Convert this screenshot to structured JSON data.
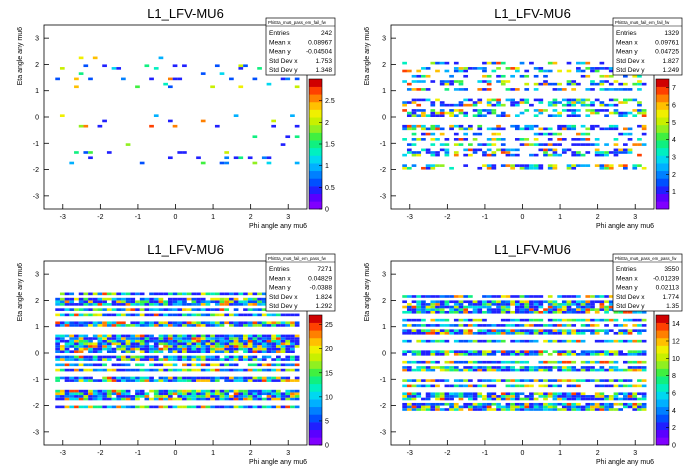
{
  "chart_data": [
    {
      "type": "heatmap",
      "title": "L1_LFV-MU6",
      "xlabel": "Phi angle any mu6",
      "ylabel": "Eta angle any mu6",
      "xlim": [
        -3.5,
        3.5
      ],
      "ylim": [
        -3.5,
        3.5
      ],
      "x_ticks": [
        "-3",
        "-2",
        "-1",
        "0",
        "1",
        "2",
        "3"
      ],
      "y_ticks": [
        "-3",
        "-2",
        "-1",
        "0",
        "1",
        "2",
        "3"
      ],
      "z_ticks": [
        "0",
        "0.5",
        "1",
        "1.5",
        "2",
        "2.5"
      ],
      "zmax": 3,
      "fill_fraction": 0.12,
      "stats": {
        "name": "PhiEta_mu6_pass_em_fail_fw",
        "rows": [
          {
            "label": "Entries",
            "value": "242"
          },
          {
            "label": "Mean x",
            "value": "0.08967"
          },
          {
            "label": "Mean y",
            "value": "-0.04504"
          },
          {
            "label": "Std Dev x",
            "value": "1.753"
          },
          {
            "label": "Std Dev y",
            "value": "1.348"
          }
        ]
      }
    },
    {
      "type": "heatmap",
      "title": "L1_LFV-MU6",
      "xlabel": "Phi angle any mu6",
      "ylabel": "Eta angle any mu6",
      "xlim": [
        -3.5,
        3.5
      ],
      "ylim": [
        -3.5,
        3.5
      ],
      "x_ticks": [
        "-3",
        "-2",
        "-1",
        "0",
        "1",
        "2",
        "3"
      ],
      "y_ticks": [
        "-3",
        "-2",
        "-1",
        "0",
        "1",
        "2",
        "3"
      ],
      "z_ticks": [
        "1",
        "2",
        "3",
        "4",
        "5",
        "6",
        "7"
      ],
      "zmax": 7.5,
      "fill_fraction": 0.55,
      "stats": {
        "name": "PhiEta_mu6_fail_em_fail_fw",
        "rows": [
          {
            "label": "Entries",
            "value": "1329"
          },
          {
            "label": "Mean x",
            "value": "0.09761"
          },
          {
            "label": "Mean y",
            "value": "0.04725"
          },
          {
            "label": "Std Dev x",
            "value": "1.827"
          },
          {
            "label": "Std Dev y",
            "value": "1.249"
          }
        ]
      }
    },
    {
      "type": "heatmap",
      "title": "L1_LFV-MU6",
      "xlabel": "Phi angle any mu6",
      "ylabel": "Eta angle any mu6",
      "xlim": [
        -3.5,
        3.5
      ],
      "ylim": [
        -3.5,
        3.5
      ],
      "x_ticks": [
        "-3",
        "-2",
        "-1",
        "0",
        "1",
        "2",
        "3"
      ],
      "y_ticks": [
        "-3",
        "-2",
        "-1",
        "0",
        "1",
        "2",
        "3"
      ],
      "z_ticks": [
        "0",
        "5",
        "10",
        "15",
        "20",
        "25"
      ],
      "zmax": 27,
      "fill_fraction": 0.95,
      "stats": {
        "name": "PhiEta_mu6_fail_em_pass_fw",
        "rows": [
          {
            "label": "Entries",
            "value": "7271"
          },
          {
            "label": "Mean x",
            "value": "0.04829"
          },
          {
            "label": "Mean y",
            "value": "-0.0388"
          },
          {
            "label": "Std Dev x",
            "value": "1.824"
          },
          {
            "label": "Std Dev y",
            "value": "1.292"
          }
        ]
      }
    },
    {
      "type": "heatmap",
      "title": "L1_LFV-MU6",
      "xlabel": "Phi angle any mu6",
      "ylabel": "Eta angle any mu6",
      "xlim": [
        -3.5,
        3.5
      ],
      "ylim": [
        -3.5,
        3.5
      ],
      "x_ticks": [
        "-3",
        "-2",
        "-1",
        "0",
        "1",
        "2",
        "3"
      ],
      "y_ticks": [
        "-3",
        "-2",
        "-1",
        "0",
        "1",
        "2",
        "3"
      ],
      "z_ticks": [
        "0",
        "2",
        "4",
        "6",
        "8",
        "10",
        "12",
        "14"
      ],
      "zmax": 15,
      "fill_fraction": 0.9,
      "stats": {
        "name": "PhiEta_mu6_pass_em_pass_fw",
        "rows": [
          {
            "label": "Entries",
            "value": "3550"
          },
          {
            "label": "Mean x",
            "value": "-0.01239"
          },
          {
            "label": "Mean y",
            "value": "0.02113"
          },
          {
            "label": "Std Dev x",
            "value": "1.774"
          },
          {
            "label": "Std Dev y",
            "value": "1.35"
          }
        ]
      }
    }
  ],
  "palette": [
    "#8000ff",
    "#5a00ff",
    "#2020ff",
    "#0050ff",
    "#0080ff",
    "#00b0ff",
    "#00d8f0",
    "#00f0c0",
    "#10f080",
    "#40f040",
    "#90f020",
    "#c8f000",
    "#f0f000",
    "#ffc000",
    "#ff8000",
    "#ff4000",
    "#d00000"
  ]
}
